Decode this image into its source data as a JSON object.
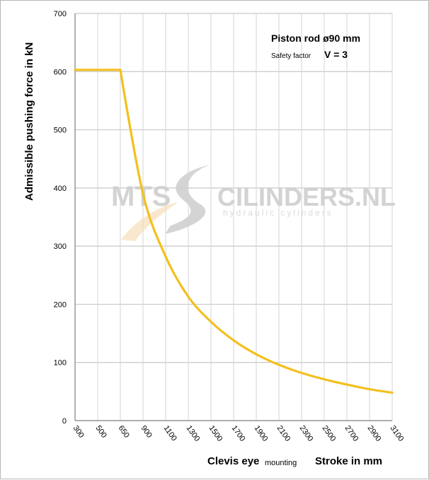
{
  "chart_data": {
    "type": "line",
    "xlabel_main": "Clevis eye",
    "xlabel_sub": "mounting",
    "xlabel_right": "Stroke in mm",
    "ylabel": "Admissible  pushing  force in kN",
    "x_ticks": [
      "300",
      "500",
      "650",
      "900",
      "1100",
      "1300",
      "1500",
      "1700",
      "1900",
      "2100",
      "2300",
      "2500",
      "2700",
      "2900",
      "3100"
    ],
    "y_ticks": [
      0,
      100,
      200,
      300,
      400,
      500,
      600,
      700
    ],
    "ylim": [
      0,
      700
    ],
    "grid": true,
    "annotation": {
      "line1": "Piston rod ø90 mm",
      "line2_small": "Safety factor",
      "line2_big": "V = 3"
    },
    "series": [
      {
        "color": "#f2c01e",
        "x": [
          "300",
          "500",
          "650",
          "900",
          "1100",
          "1300",
          "1500",
          "1700",
          "1900",
          "2100",
          "2300",
          "2500",
          "2700",
          "2900",
          "3100"
        ],
        "values": [
          603,
          603,
          603,
          390,
          282,
          213,
          170,
          138,
          114,
          96,
          82,
          71,
          62,
          54,
          48
        ]
      }
    ]
  },
  "watermark": {
    "brand_left": "MTS",
    "brand_right": "CILINDERS.NL",
    "tagline": "hydraulic  cylinders"
  },
  "colors": {
    "line": "#f2c01e",
    "grid": "#c8c8c8",
    "axis": "#7f7f7f"
  }
}
